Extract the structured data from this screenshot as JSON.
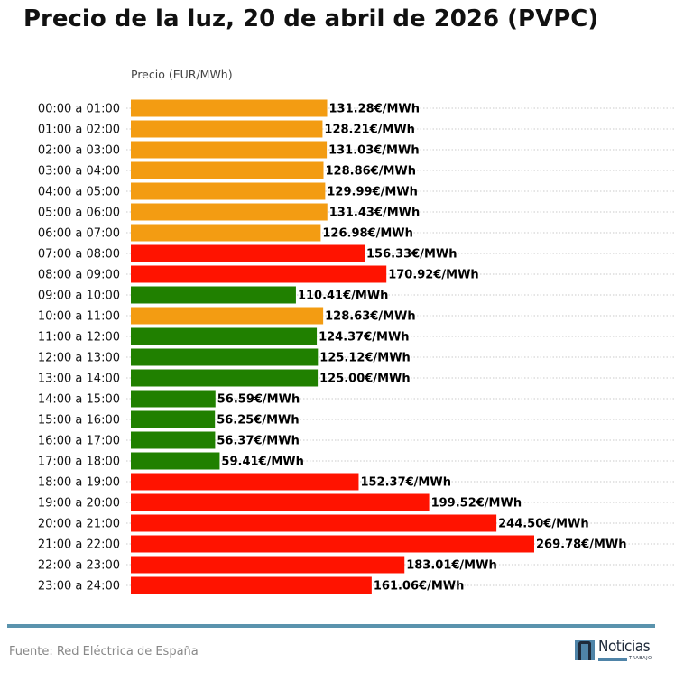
{
  "title": "Precio de la luz, 20 de abril de 2026 (PVPC)",
  "source": "Fuente: Red Eléctrica de España",
  "logo": {
    "text": "Noticias",
    "subtext": "TRABAJO"
  },
  "colors": {
    "high": "#ff1300",
    "mid": "#f39c12",
    "low": "#208000",
    "footer_line": "#5a93ad"
  },
  "chart_data": {
    "type": "bar",
    "orientation": "horizontal",
    "title": "Precio de la luz, 20 de abril de 2026 (PVPC)",
    "xlabel": "Precio (EUR/MWh)",
    "grid": true,
    "value_suffix": "€/MWh",
    "categories": [
      "00:00 a 01:00",
      "01:00 a 02:00",
      "02:00 a 03:00",
      "03:00 a 04:00",
      "04:00 a 05:00",
      "05:00 a 06:00",
      "06:00 a 07:00",
      "07:00 a 08:00",
      "08:00 a 09:00",
      "09:00 a 10:00",
      "10:00 a 11:00",
      "11:00 a 12:00",
      "12:00 a 13:00",
      "13:00 a 14:00",
      "14:00 a 15:00",
      "15:00 a 16:00",
      "16:00 a 17:00",
      "17:00 a 18:00",
      "18:00 a 19:00",
      "19:00 a 20:00",
      "20:00 a 21:00",
      "21:00 a 22:00",
      "22:00 a 23:00",
      "23:00 a 24:00"
    ],
    "values": [
      131.28,
      128.21,
      131.03,
      128.86,
      129.99,
      131.43,
      126.98,
      156.33,
      170.92,
      110.41,
      128.63,
      124.37,
      125.12,
      125.0,
      56.59,
      56.25,
      56.37,
      59.41,
      152.37,
      199.52,
      244.5,
      269.78,
      183.01,
      161.06
    ],
    "labels": [
      "131.28€/MWh",
      "128.21€/MWh",
      "131.03€/MWh",
      "128.86€/MWh",
      "129.99€/MWh",
      "131.43€/MWh",
      "126.98€/MWh",
      "156.33€/MWh",
      "170.92€/MWh",
      "110.41€/MWh",
      "128.63€/MWh",
      "124.37€/MWh",
      "125.12€/MWh",
      "125.00€/MWh",
      "56.59€/MWh",
      "56.25€/MWh",
      "56.37€/MWh",
      "59.41€/MWh",
      "152.37€/MWh",
      "199.52€/MWh",
      "244.50€/MWh",
      "269.78€/MWh",
      "183.01€/MWh",
      "161.06€/MWh"
    ],
    "bar_colors": [
      "mid",
      "mid",
      "mid",
      "mid",
      "mid",
      "mid",
      "mid",
      "high",
      "high",
      "low",
      "mid",
      "low",
      "low",
      "low",
      "low",
      "low",
      "low",
      "low",
      "high",
      "high",
      "high",
      "high",
      "high",
      "high"
    ]
  }
}
